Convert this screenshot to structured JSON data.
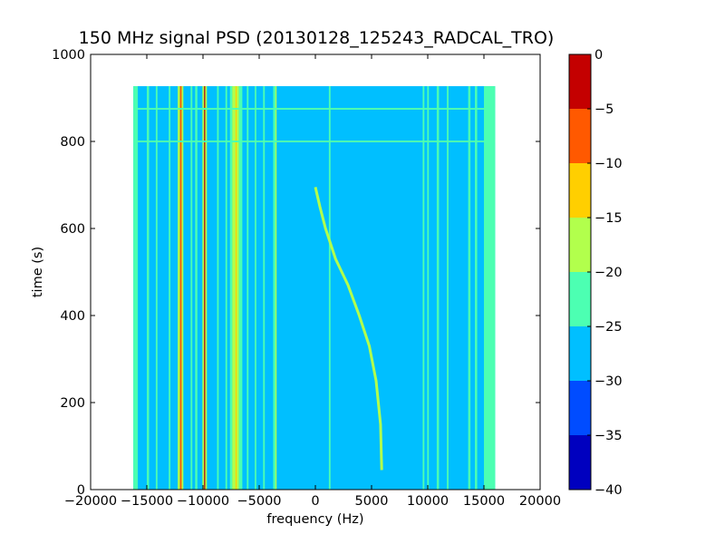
{
  "chart_data": {
    "type": "heatmap",
    "title": "150 MHz signal PSD (20130128_125243_RADCAL_TRO)",
    "xlabel": "frequency (Hz)",
    "ylabel": "time (s)",
    "xlim": [
      -20000,
      20000
    ],
    "ylim": [
      0,
      1000
    ],
    "x_ticks": [
      -20000,
      -15000,
      -10000,
      -5000,
      0,
      5000,
      10000,
      15000,
      20000
    ],
    "x_tick_labels": [
      "−20000",
      "−15000",
      "−10000",
      "−5000",
      "0",
      "5000",
      "10000",
      "15000",
      "20000"
    ],
    "y_ticks": [
      0,
      200,
      400,
      600,
      800,
      1000
    ],
    "y_tick_labels": [
      "0",
      "200",
      "400",
      "600",
      "800",
      "1000"
    ],
    "data_extent": {
      "x": [
        -16200,
        16000
      ],
      "y": [
        0,
        927
      ]
    },
    "colormap": "jet",
    "background_level_db": -27.5,
    "colorbar": {
      "ticks": [
        0,
        -5,
        -10,
        -15,
        -20,
        -25,
        -30,
        -35,
        -40
      ],
      "tick_labels": [
        "0",
        "−5",
        "−10",
        "−15",
        "−20",
        "−25",
        "−30",
        "−35",
        "−40"
      ],
      "levels": [
        -40,
        -35,
        -30,
        -25,
        -20,
        -15,
        -10,
        -5,
        0
      ],
      "colors": [
        "#0000bf",
        "#004cff",
        "#00bfff",
        "#4cffb2",
        "#b2ff4c",
        "#ffcf00",
        "#ff5900",
        "#c40000"
      ]
    },
    "bands": [
      {
        "x0": -16200,
        "x1": -15800,
        "db": -22.5
      },
      {
        "x0": -15000,
        "x1": -14800,
        "db": -22.5
      },
      {
        "x0": -14200,
        "x1": -14050,
        "db": -22.5
      },
      {
        "x0": -13050,
        "x1": -12900,
        "db": -22.5
      },
      {
        "x0": -12250,
        "x1": -12050,
        "db": -17.5
      },
      {
        "x0": -12050,
        "x1": -11900,
        "db": -7.5
      },
      {
        "x0": -11900,
        "x1": -11750,
        "db": -17.5
      },
      {
        "x0": -11100,
        "x1": -10950,
        "db": -22.5
      },
      {
        "x0": -10700,
        "x1": -10500,
        "db": -22.5
      },
      {
        "x0": -10050,
        "x1": -9900,
        "db": -17.5
      },
      {
        "x0": -9900,
        "x1": -9800,
        "db": -2.5
      },
      {
        "x0": -9800,
        "x1": -9650,
        "db": -17.5
      },
      {
        "x0": -8750,
        "x1": -8600,
        "db": -22.5
      },
      {
        "x0": -8000,
        "x1": -7850,
        "db": -22.5
      },
      {
        "x0": -7600,
        "x1": -7400,
        "db": -22.5
      },
      {
        "x0": -7400,
        "x1": -6800,
        "db": -17.5
      },
      {
        "x0": -7100,
        "x1": -7000,
        "db": -12.5
      },
      {
        "x0": -6800,
        "x1": -6500,
        "db": -22.5
      },
      {
        "x0": -6100,
        "x1": -5950,
        "db": -22.5
      },
      {
        "x0": -5400,
        "x1": -5250,
        "db": -22.5
      },
      {
        "x0": -4650,
        "x1": -4500,
        "db": -22.5
      },
      {
        "x0": -3750,
        "x1": -3550,
        "db": -22.5
      },
      {
        "x0": -3550,
        "x1": -3450,
        "db": -17.5
      },
      {
        "x0": 1200,
        "x1": 1350,
        "db": -22.5
      },
      {
        "x0": 9550,
        "x1": 9700,
        "db": -22.5
      },
      {
        "x0": 9950,
        "x1": 10100,
        "db": -22.5
      },
      {
        "x0": 10800,
        "x1": 11000,
        "db": -22.5
      },
      {
        "x0": 11700,
        "x1": 11850,
        "db": -22.5
      },
      {
        "x0": 13600,
        "x1": 13800,
        "db": -22.5
      },
      {
        "x0": 14200,
        "x1": 14400,
        "db": -22.5
      },
      {
        "x0": 15000,
        "x1": 16000,
        "db": -22.5
      }
    ],
    "horizontal_lines": [
      {
        "y": 875,
        "db": -22.5
      },
      {
        "y": 800,
        "db": -22.5
      }
    ],
    "trace": {
      "db": -17.5,
      "points": [
        [
          5900,
          45
        ],
        [
          5800,
          150
        ],
        [
          5400,
          250
        ],
        [
          4800,
          330
        ],
        [
          3900,
          400
        ],
        [
          2900,
          470
        ],
        [
          1800,
          530
        ],
        [
          900,
          600
        ],
        [
          400,
          650
        ],
        [
          0,
          695
        ]
      ]
    }
  }
}
